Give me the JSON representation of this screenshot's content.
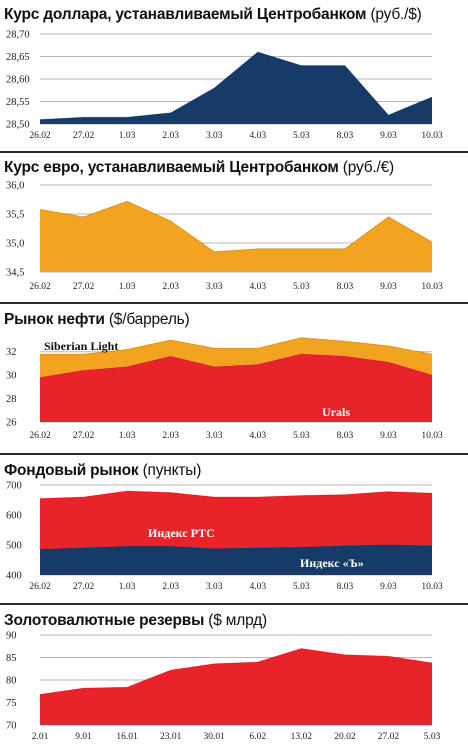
{
  "colors": {
    "navy": "#163b69",
    "orange": "#f2a421",
    "red": "#e8232a",
    "grid": "#b9b9b9",
    "plotbg": "#ffffff"
  },
  "chart_data": [
    {
      "type": "area",
      "title": "Курс доллара, устанавливаемый Центробанком",
      "unit": "(руб./$)",
      "categories": [
        "26.02",
        "27.02",
        "1.03",
        "2.03",
        "3.03",
        "4.03",
        "5.03",
        "8.03",
        "9.03",
        "10.03"
      ],
      "ylim": [
        28.5,
        28.7
      ],
      "yticks": [
        "28,70",
        "28,65",
        "28,60",
        "28,55",
        "28,50"
      ],
      "ytick_values": [
        28.7,
        28.65,
        28.6,
        28.55,
        28.5
      ],
      "series": [
        {
          "values": [
            28.51,
            28.515,
            28.515,
            28.525,
            28.58,
            28.66,
            28.63,
            28.63,
            28.52,
            28.56
          ],
          "color": "navy"
        }
      ]
    },
    {
      "type": "area",
      "title": "Курс евро, устанавливаемый Центробанком",
      "unit": "(руб./€)",
      "categories": [
        "26.02",
        "27.02",
        "1.03",
        "2.03",
        "3.03",
        "4.03",
        "5.03",
        "8.03",
        "9.03",
        "10.03"
      ],
      "ylim": [
        34.5,
        36.0
      ],
      "yticks": [
        "36,0",
        "35,5",
        "35,0",
        "34,5"
      ],
      "ytick_values": [
        36.0,
        35.5,
        35.0,
        34.5
      ],
      "series": [
        {
          "values": [
            35.58,
            35.45,
            35.72,
            35.38,
            34.85,
            34.9,
            34.9,
            34.9,
            35.45,
            35.02
          ],
          "color": "orange"
        }
      ]
    },
    {
      "type": "area",
      "title": "Рынок нефти",
      "unit": "($/баррель)",
      "categories": [
        "26.02",
        "27.02",
        "1.03",
        "2.03",
        "3.03",
        "4.03",
        "5.03",
        "8.03",
        "9.03",
        "10.03"
      ],
      "ylim": [
        26,
        33
      ],
      "yticks": [
        "32",
        "30",
        "28",
        "26"
      ],
      "ytick_values": [
        32,
        30,
        28,
        26
      ],
      "series": [
        {
          "name": "Siberian Light",
          "values": [
            31.8,
            31.8,
            32.2,
            33.0,
            32.3,
            32.3,
            33.2,
            32.9,
            32.5,
            31.8
          ],
          "color": "orange"
        },
        {
          "name": "Urals",
          "values": [
            29.8,
            30.4,
            30.7,
            31.6,
            30.7,
            30.9,
            31.8,
            31.6,
            31.1,
            30.0
          ],
          "color": "red"
        }
      ]
    },
    {
      "type": "area",
      "title": "Фондовый рынок",
      "unit": "(пункты)",
      "categories": [
        "26.02",
        "27.02",
        "1.03",
        "2.03",
        "3.03",
        "4.03",
        "5.03",
        "8.03",
        "9.03",
        "10.03"
      ],
      "ylim": [
        400,
        700
      ],
      "yticks": [
        "700",
        "600",
        "500",
        "400"
      ],
      "ytick_values": [
        700,
        600,
        500,
        400
      ],
      "series": [
        {
          "name": "Индекс РТС",
          "values": [
            655,
            660,
            680,
            675,
            660,
            660,
            665,
            668,
            678,
            673
          ],
          "color": "red"
        },
        {
          "name": "Индекс «Ъ»",
          "values": [
            485,
            490,
            495,
            495,
            487,
            490,
            492,
            497,
            500,
            497
          ],
          "color": "navy"
        }
      ]
    },
    {
      "type": "area",
      "title": "Золотовалютные резервы",
      "unit": "($ млрд)",
      "categories": [
        "2.01",
        "9.01",
        "16.01",
        "23.01",
        "30.01",
        "6.02",
        "13.02",
        "20.02",
        "27.02",
        "5.03"
      ],
      "ylim": [
        70,
        90
      ],
      "yticks": [
        "90",
        "85",
        "80",
        "75",
        "70"
      ],
      "ytick_values": [
        90,
        85,
        80,
        75,
        70
      ],
      "series": [
        {
          "values": [
            76.8,
            78.2,
            78.4,
            82.2,
            83.6,
            84.0,
            87.0,
            85.6,
            85.3,
            83.8
          ],
          "color": "red"
        }
      ]
    }
  ]
}
